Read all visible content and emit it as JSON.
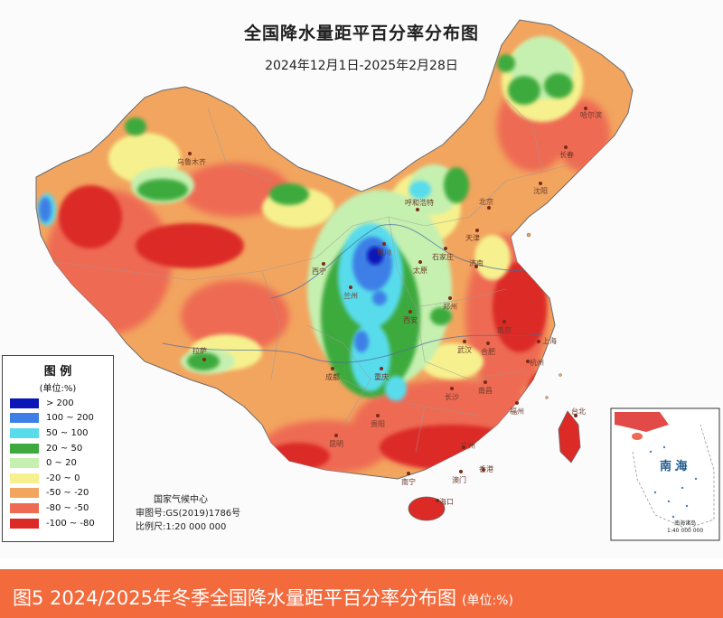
{
  "map": {
    "title": "全国降水量距平百分率分布图",
    "date_range": "2024年12月1日-2025年2月28日"
  },
  "legend": {
    "title": "图 例",
    "unit": "(单位:%)",
    "items": [
      {
        "label": "> 200",
        "color": "#0a16b8"
      },
      {
        "label": "100 ~ 200",
        "color": "#3d7fe6"
      },
      {
        "label": "50 ~ 100",
        "color": "#58dcec"
      },
      {
        "label": "20 ~ 50",
        "color": "#3eaa3e"
      },
      {
        "label": "0 ~ 20",
        "color": "#c6f0b0"
      },
      {
        "label": "-20 ~ 0",
        "color": "#f6f18e"
      },
      {
        "label": "-50 ~ -20",
        "color": "#f2a55f"
      },
      {
        "label": "-80 ~ -50",
        "color": "#ee6a52"
      },
      {
        "label": "-100 ~ -80",
        "color": "#dc2a26"
      }
    ]
  },
  "credits": {
    "agency": "国家气候中心",
    "map_no": "审图号:GS(2019)1786号",
    "scale": "比例尺:1:20 000 000"
  },
  "cities": [
    "乌鲁木齐",
    "呼和浩特",
    "哈尔滨",
    "长春",
    "沈阳",
    "北京",
    "天津",
    "银川",
    "西宁",
    "兰州",
    "拉萨",
    "成都",
    "重庆",
    "西安",
    "郑州",
    "武汉",
    "长沙",
    "南京",
    "上海",
    "贵阳",
    "昆明",
    "南宁",
    "广州",
    "澳门",
    "香港",
    "海口",
    "台北",
    "福州",
    "南昌",
    "合肥",
    "杭州",
    "济南",
    "石家庄",
    "太原"
  ],
  "inset": {
    "sea_label": "南 海",
    "islands_label": "南海诸岛",
    "scale": "1:40 000 000"
  },
  "caption": {
    "text": "图5  2024/2025年冬季全国降水量距平百分率分布图",
    "unit": "(单位:%)"
  }
}
